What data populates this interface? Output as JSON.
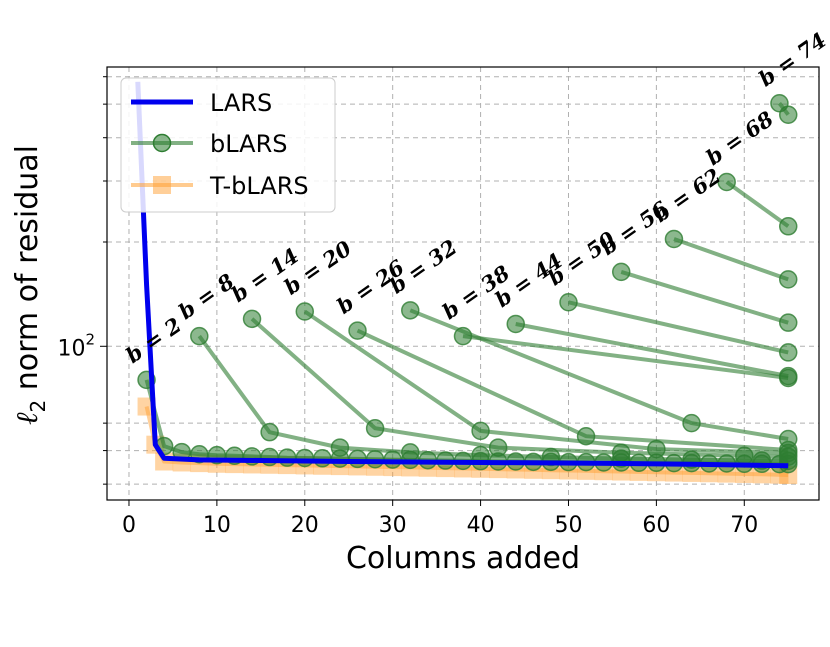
{
  "chart_data": {
    "type": "line",
    "title": "",
    "xlabel": "Columns added",
    "ylabel": "ℓ2 norm of residual",
    "xlim": [
      -2.5,
      78.5
    ],
    "ylim": [
      36,
      640
    ],
    "yscale": "log",
    "grid": true,
    "legend_position": "top-left",
    "x_ticks": [
      0,
      10,
      20,
      30,
      40,
      50,
      60,
      70
    ],
    "y_tick_labels": [
      {
        "value": 100,
        "label": "10",
        "sup": "2"
      }
    ],
    "colors": {
      "lars": "#0000ee",
      "blars": "#2e7d32",
      "tblars": "#ffa033",
      "grid": "#b0b0b0"
    },
    "series": [
      {
        "name": "LARS",
        "kind": "lars",
        "x": [
          1,
          2,
          3,
          4,
          8,
          15,
          25,
          40,
          55,
          65,
          75
        ],
        "y": [
          580,
          150,
          52,
          47.5,
          47.0,
          46.8,
          46.5,
          46.2,
          45.9,
          45.6,
          45.2
        ]
      },
      {
        "name": "bLARS",
        "kind": "blars",
        "curves": [
          {
            "label": "b = 2",
            "x": [
              2,
              4,
              6,
              8,
              10,
              12,
              14,
              16,
              18,
              20,
              22,
              24,
              26,
              28,
              30,
              32,
              34,
              36,
              38,
              40,
              42,
              44,
              46,
              48,
              50,
              52,
              54,
              56,
              58,
              60,
              62,
              64,
              66,
              68,
              70,
              72,
              74,
              75
            ],
            "y": [
              80,
              51.5,
              49.5,
              48.8,
              48.5,
              48.3,
              48.1,
              47.9,
              47.7,
              47.6,
              47.5,
              47.4,
              47.3,
              47.2,
              47.1,
              47.0,
              46.9,
              46.8,
              46.7,
              46.6,
              46.5,
              46.5,
              46.4,
              46.4,
              46.3,
              46.3,
              46.2,
              46.2,
              46.1,
              46.1,
              46.0,
              46.0,
              45.9,
              45.9,
              45.8,
              45.8,
              45.7,
              45.7
            ]
          },
          {
            "label": "b = 8",
            "x": [
              8,
              16,
              24,
              32,
              40,
              48,
              56,
              64,
              72,
              75
            ],
            "y": [
              107,
              56.5,
              51,
              49.4,
              48.5,
              47.9,
              47.4,
              47.1,
              46.8,
              46.7
            ]
          },
          {
            "label": "b = 14",
            "x": [
              14,
              28,
              42,
              56,
              70,
              75
            ],
            "y": [
              120,
              58,
              51,
              49.3,
              48.3,
              48.0
            ]
          },
          {
            "label": "b = 20",
            "x": [
              20,
              40,
              60,
              75
            ],
            "y": [
              126,
              57,
              50.5,
              49.2
            ]
          },
          {
            "label": "b = 26",
            "x": [
              26,
              52,
              75
            ],
            "y": [
              111,
              55,
              50.2
            ]
          },
          {
            "label": "b = 32",
            "x": [
              32,
              64,
              75
            ],
            "y": [
              127,
              60,
              54
            ]
          },
          {
            "label": "b = 38",
            "x": [
              38,
              75
            ],
            "y": [
              107,
              81
            ]
          },
          {
            "label": "b = 44",
            "x": [
              44,
              75
            ],
            "y": [
              116,
              82
            ]
          },
          {
            "label": "b = 50",
            "x": [
              50,
              75
            ],
            "y": [
              134,
              96
            ]
          },
          {
            "label": "b = 56",
            "x": [
              56,
              75
            ],
            "y": [
              164,
              117
            ]
          },
          {
            "label": "b = 62",
            "x": [
              62,
              75
            ],
            "y": [
              204,
              156
            ]
          },
          {
            "label": "b = 68",
            "x": [
              68,
              75
            ],
            "y": [
              298,
              222
            ]
          },
          {
            "label": "b = 74",
            "x": [
              74,
              75
            ],
            "y": [
              503,
              466
            ]
          }
        ]
      },
      {
        "name": "T-bLARS",
        "kind": "tblars",
        "x": [
          2,
          3,
          4,
          6,
          8,
          10,
          12,
          14,
          16,
          18,
          20,
          22,
          24,
          26,
          28,
          30,
          32,
          34,
          36,
          38,
          40,
          42,
          44,
          46,
          48,
          50,
          52,
          54,
          56,
          58,
          60,
          62,
          64,
          66,
          68,
          70,
          72,
          74,
          75
        ],
        "y": [
          67,
          52,
          46.5,
          46.2,
          46.0,
          45.8,
          45.7,
          45.6,
          45.5,
          45.4,
          45.3,
          45.2,
          45.1,
          45.0,
          44.9,
          44.8,
          44.7,
          44.6,
          44.5,
          44.4,
          44.3,
          44.2,
          44.1,
          44.0,
          43.9,
          43.8,
          43.7,
          43.6,
          43.5,
          43.4,
          43.3,
          43.2,
          43.1,
          43.0,
          42.9,
          42.8,
          42.7,
          42.6,
          42.5
        ]
      }
    ]
  }
}
